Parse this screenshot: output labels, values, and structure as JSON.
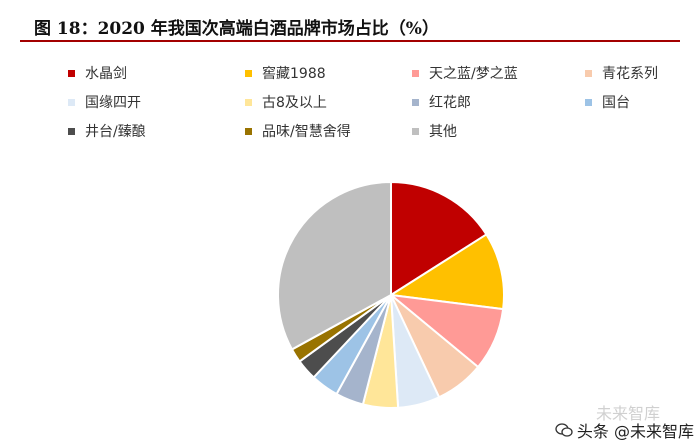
{
  "title": "图 18：2020 年我国次高端白酒品牌市场占比（%）",
  "chart_data": {
    "type": "pie",
    "title": "图 18：2020 年我国次高端白酒品牌市场占比（%）",
    "legend_position": "top",
    "slices": [
      {
        "label": "水晶剑",
        "value": 16,
        "color": "#c00000"
      },
      {
        "label": "窖藏1988",
        "value": 11,
        "color": "#ffc000"
      },
      {
        "label": "天之蓝/梦之蓝",
        "value": 9,
        "color": "#ff9a96"
      },
      {
        "label": "青花系列",
        "value": 7,
        "color": "#f8cbad"
      },
      {
        "label": "国缘四开",
        "value": 6,
        "color": "#dde9f6"
      },
      {
        "label": "古8及以上",
        "value": 5,
        "color": "#ffe699"
      },
      {
        "label": "红花郎",
        "value": 4,
        "color": "#a5b4cc"
      },
      {
        "label": "国台",
        "value": 4,
        "color": "#9dc3e6"
      },
      {
        "label": "井台/臻酿",
        "value": 3,
        "color": "#4d4d4d"
      },
      {
        "label": "品味/智慧舍得",
        "value": 2,
        "color": "#997300"
      },
      {
        "label": "其他",
        "value": 33,
        "color": "#bfbfbf"
      }
    ]
  },
  "watermark": {
    "text": "头条 @未来智库",
    "faded_text": "未来智库"
  }
}
